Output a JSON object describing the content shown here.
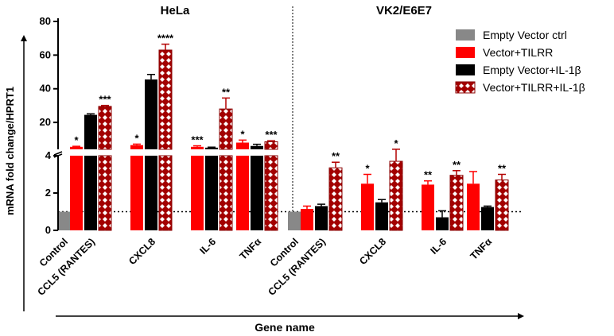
{
  "chart_data": {
    "type": "bar",
    "xlabel": "Gene name",
    "ylabel": "mRNA fold change/HPRT1",
    "y_axis": {
      "lower_segment": {
        "range": [
          0,
          4
        ],
        "ticks": [
          0,
          2,
          4
        ]
      },
      "upper_segment": {
        "range": [
          4,
          80
        ],
        "ticks": [
          20,
          40,
          60,
          80
        ]
      },
      "axis_break": true
    },
    "reference_line": 1,
    "legend": [
      {
        "name": "Empty Vector ctrl",
        "color": "#888888",
        "pattern": "solid"
      },
      {
        "name": "Vector+TILRR",
        "color": "#ff0000",
        "pattern": "solid"
      },
      {
        "name": "Empty Vector+IL-1β",
        "color": "#000000",
        "pattern": "solid"
      },
      {
        "name": "Vector+TILRR+IL-1β",
        "color": "#b30000",
        "pattern": "checkered"
      }
    ],
    "panels": [
      {
        "title": "HeLa",
        "categories": [
          "Control",
          "CCL5 (RANTES)",
          "CXCL8",
          "IL-6",
          "TNFα"
        ],
        "bars": [
          {
            "category": "Control",
            "series": "Empty Vector ctrl",
            "value": 1.0,
            "error": 0,
            "sig": ""
          },
          {
            "category": "CCL5 (RANTES)",
            "series": "Vector+TILRR",
            "value": 5.5,
            "error": 0.3,
            "sig": "*"
          },
          {
            "category": "CCL5 (RANTES)",
            "series": "Empty Vector+IL-1β",
            "value": 24.5,
            "error": 0.6,
            "sig": ""
          },
          {
            "category": "CCL5 (RANTES)",
            "series": "Vector+TILRR+IL-1β",
            "value": 29.5,
            "error": 0.6,
            "sig": "***"
          },
          {
            "category": "CXCL8",
            "series": "Vector+TILRR",
            "value": 6.5,
            "error": 0.6,
            "sig": "*"
          },
          {
            "category": "CXCL8",
            "series": "Empty Vector+IL-1β",
            "value": 45.5,
            "error": 3.0,
            "sig": ""
          },
          {
            "category": "CXCL8",
            "series": "Vector+TILRR+IL-1β",
            "value": 63.0,
            "error": 3.5,
            "sig": "****"
          },
          {
            "category": "IL-6",
            "series": "Vector+TILRR",
            "value": 5.5,
            "error": 0.6,
            "sig": "***"
          },
          {
            "category": "IL-6",
            "series": "Empty Vector+IL-1β",
            "value": 5.0,
            "error": 0.3,
            "sig": ""
          },
          {
            "category": "IL-6",
            "series": "Vector+TILRR+IL-1β",
            "value": 28.0,
            "error": 6.5,
            "sig": "**"
          },
          {
            "category": "TNFα",
            "series": "Vector+TILRR",
            "value": 8.0,
            "error": 1.5,
            "sig": "*"
          },
          {
            "category": "TNFα",
            "series": "Empty Vector+IL-1β",
            "value": 6.0,
            "error": 1.0,
            "sig": ""
          },
          {
            "category": "TNFα",
            "series": "Vector+TILRR+IL-1β",
            "value": 8.5,
            "error": 0.6,
            "sig": "***"
          }
        ]
      },
      {
        "title": "VK2/E6E7",
        "categories": [
          "Control",
          "CCL5 (RANTES)",
          "CXCL8",
          "IL-6",
          "TNFα"
        ],
        "bars": [
          {
            "category": "Control",
            "series": "Empty Vector ctrl",
            "value": 1.0,
            "error": 0,
            "sig": ""
          },
          {
            "category": "CCL5 (RANTES)",
            "series": "Vector+TILRR",
            "value": 1.15,
            "error": 0.15,
            "sig": ""
          },
          {
            "category": "CCL5 (RANTES)",
            "series": "Empty Vector+IL-1β",
            "value": 1.3,
            "error": 0.1,
            "sig": ""
          },
          {
            "category": "CCL5 (RANTES)",
            "series": "Vector+TILRR+IL-1β",
            "value": 3.35,
            "error": 0.3,
            "sig": "**"
          },
          {
            "category": "CXCL8",
            "series": "Vector+TILRR",
            "value": 2.5,
            "error": 0.5,
            "sig": "*"
          },
          {
            "category": "CXCL8",
            "series": "Empty Vector+IL-1β",
            "value": 1.5,
            "error": 0.15,
            "sig": ""
          },
          {
            "category": "CXCL8",
            "series": "Vector+TILRR+IL-1β",
            "value": 3.7,
            "error": 0.35,
            "sig": "*"
          },
          {
            "category": "IL-6",
            "series": "Vector+TILRR",
            "value": 2.45,
            "error": 0.2,
            "sig": "**"
          },
          {
            "category": "IL-6",
            "series": "Empty Vector+IL-1β",
            "value": 0.7,
            "error": 0.35,
            "sig": ""
          },
          {
            "category": "IL-6",
            "series": "Vector+TILRR+IL-1β",
            "value": 2.95,
            "error": 0.25,
            "sig": "**"
          },
          {
            "category": "TNFα",
            "series": "Vector+TILRR",
            "value": 2.5,
            "error": 0.65,
            "sig": ""
          },
          {
            "category": "TNFα",
            "series": "Empty Vector+IL-1β",
            "value": 1.25,
            "error": 0.05,
            "sig": ""
          },
          {
            "category": "TNFα",
            "series": "Vector+TILRR+IL-1β",
            "value": 2.7,
            "error": 0.3,
            "sig": "**"
          }
        ]
      }
    ]
  }
}
